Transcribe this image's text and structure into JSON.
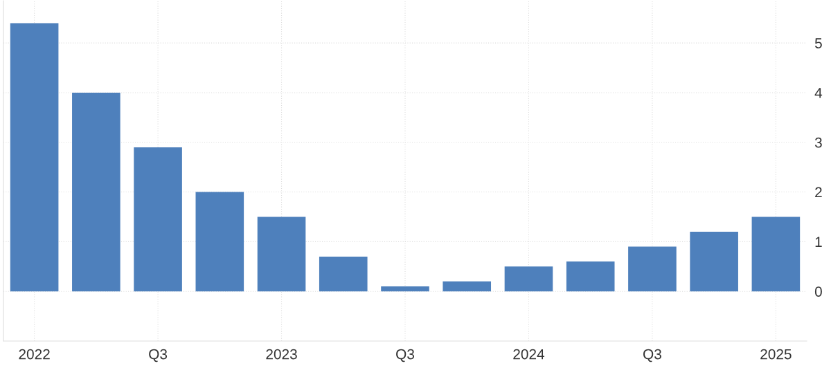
{
  "chart_data": {
    "type": "bar",
    "categories": [
      "2022",
      null,
      "Q3",
      null,
      "2023",
      null,
      "Q3",
      null,
      "2024",
      null,
      "Q3",
      null,
      "2025"
    ],
    "values": [
      5.4,
      4.0,
      2.9,
      2.0,
      1.5,
      0.7,
      0.1,
      0.2,
      0.5,
      0.6,
      0.9,
      1.2,
      1.5
    ],
    "color": "#4e80bc",
    "ylim": [
      -1,
      5.85
    ],
    "yticks": [
      0,
      1,
      2,
      3,
      4,
      5
    ],
    "grid": true,
    "legend": false
  }
}
